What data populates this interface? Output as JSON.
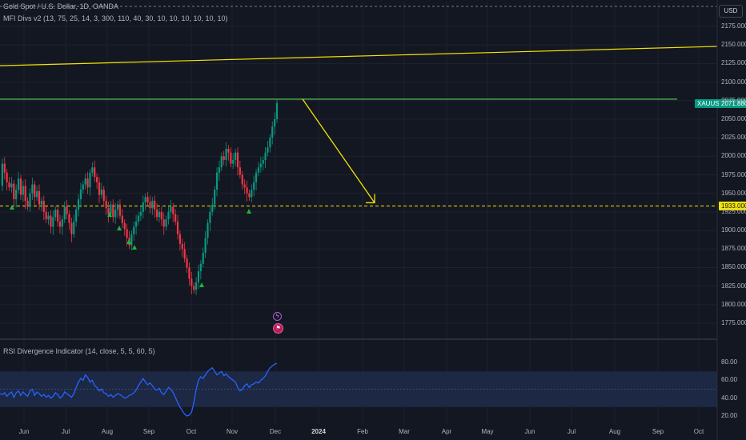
{
  "header": {
    "symbol_legend": "Gold Spot / U.S. Dollar, 1D, OANDA",
    "indicator_legend": "MFI Divs v2 (13, 75, 25, 14, 3, 300, 110, 40, 30, 10, 10, 10, 10, 10, 10)",
    "currency": "USD"
  },
  "price_tags": {
    "symbol": "XAUUSD",
    "last_price": "2071.880",
    "level": "1933.000"
  },
  "events": {
    "bolt": "ϟ",
    "flag": "⚑"
  },
  "colors": {
    "background": "#131722",
    "up": "#089981",
    "down": "#f23645",
    "trendline": "#f5e400",
    "resistance": "#4caf50",
    "rsi": "#2962ff",
    "rsi_band": "#1e2c4a",
    "signal": "#1fb53b"
  },
  "chart_data": [
    {
      "type": "candlestick",
      "title": "Gold Spot / U.S. Dollar, 1D, OANDA",
      "ylim": [
        1750,
        2200
      ],
      "y_ticks": [
        "2175.000",
        "2150.000",
        "2125.000",
        "2100.000",
        "2075.000",
        "2050.000",
        "2025.000",
        "2000.000",
        "1975.000",
        "1950.000",
        "1925.000",
        "1900.000",
        "1875.000",
        "1850.000",
        "1825.000",
        "1800.000",
        "1775.000"
      ],
      "x_ticks": [
        {
          "label": "Jun",
          "bold": false
        },
        {
          "label": "Jul",
          "bold": false
        },
        {
          "label": "Aug",
          "bold": false
        },
        {
          "label": "Sep",
          "bold": false
        },
        {
          "label": "Oct",
          "bold": false
        },
        {
          "label": "Nov",
          "bold": false
        },
        {
          "label": "Dec",
          "bold": false
        },
        {
          "label": "2024",
          "bold": true
        },
        {
          "label": "Feb",
          "bold": false
        },
        {
          "label": "Mar",
          "bold": false
        },
        {
          "label": "Apr",
          "bold": false
        },
        {
          "label": "May",
          "bold": false
        },
        {
          "label": "Jun",
          "bold": false
        },
        {
          "label": "Jul",
          "bold": false
        },
        {
          "label": "Aug",
          "bold": false
        },
        {
          "label": "Sep",
          "bold": false
        },
        {
          "label": "Oct",
          "bold": false
        }
      ],
      "close_series": [
        1960,
        1990,
        1978,
        1965,
        1958,
        1963,
        1942,
        1955,
        1970,
        1948,
        1960,
        1940,
        1932,
        1950,
        1962,
        1945,
        1953,
        1935,
        1940,
        1925,
        1915,
        1920,
        1905,
        1918,
        1928,
        1912,
        1905,
        1915,
        1932,
        1922,
        1910,
        1895,
        1912,
        1928,
        1942,
        1955,
        1962,
        1970,
        1958,
        1978,
        1985,
        1972,
        1965,
        1948,
        1955,
        1940,
        1930,
        1922,
        1935,
        1918,
        1928,
        1935,
        1920,
        1910,
        1902,
        1890,
        1880,
        1895,
        1905,
        1912,
        1920,
        1925,
        1938,
        1945,
        1938,
        1930,
        1940,
        1928,
        1918,
        1925,
        1915,
        1905,
        1915,
        1925,
        1932,
        1922,
        1912,
        1895,
        1882,
        1875,
        1862,
        1850,
        1835,
        1825,
        1820,
        1830,
        1845,
        1855,
        1870,
        1890,
        1910,
        1925,
        1935,
        1955,
        1978,
        1985,
        2000,
        1995,
        2010,
        2005,
        1990,
        1995,
        2005,
        1985,
        1975,
        1962,
        1958,
        1950,
        1945,
        1955,
        1965,
        1978,
        1985,
        1990,
        1995,
        2005,
        2012,
        2025,
        2040,
        2050,
        2071.88
      ],
      "resistance": 2077,
      "level": 1933,
      "trendline_from": 2122,
      "trendline_to": 2148,
      "projection_from": 2077,
      "projection_to": 1933
    },
    {
      "type": "line",
      "title": "RSI Divergence Indicator (14, close, 5, 5, 60, 5)",
      "ylim": [
        15,
        85
      ],
      "y_ticks": [
        "80.00",
        "60.00",
        "40.00",
        "20.00"
      ],
      "band": [
        30,
        70
      ],
      "values": [
        45,
        44,
        46,
        42,
        45,
        47,
        41,
        46,
        48,
        43,
        47,
        44,
        42,
        48,
        50,
        43,
        47,
        45,
        42,
        44,
        41,
        43,
        40,
        42,
        46,
        44,
        40,
        42,
        47,
        45,
        43,
        41,
        45,
        52,
        58,
        62,
        60,
        66,
        63,
        58,
        60,
        54,
        52,
        48,
        50,
        46,
        45,
        42,
        44,
        41,
        43,
        45,
        44,
        42,
        40,
        41,
        43,
        44,
        46,
        49,
        54,
        58,
        62,
        58,
        55,
        57,
        54,
        50,
        49,
        51,
        46,
        44,
        48,
        52,
        50,
        46,
        41,
        35,
        30,
        26,
        22,
        20,
        21,
        24,
        35,
        50,
        60,
        64,
        62,
        66,
        70,
        72,
        74,
        70,
        66,
        68,
        70,
        65,
        67,
        64,
        62,
        60,
        58,
        52,
        48,
        50,
        54,
        56,
        52,
        55,
        56,
        58,
        57,
        60,
        62,
        65,
        70,
        74,
        76,
        78,
        79
      ]
    }
  ]
}
